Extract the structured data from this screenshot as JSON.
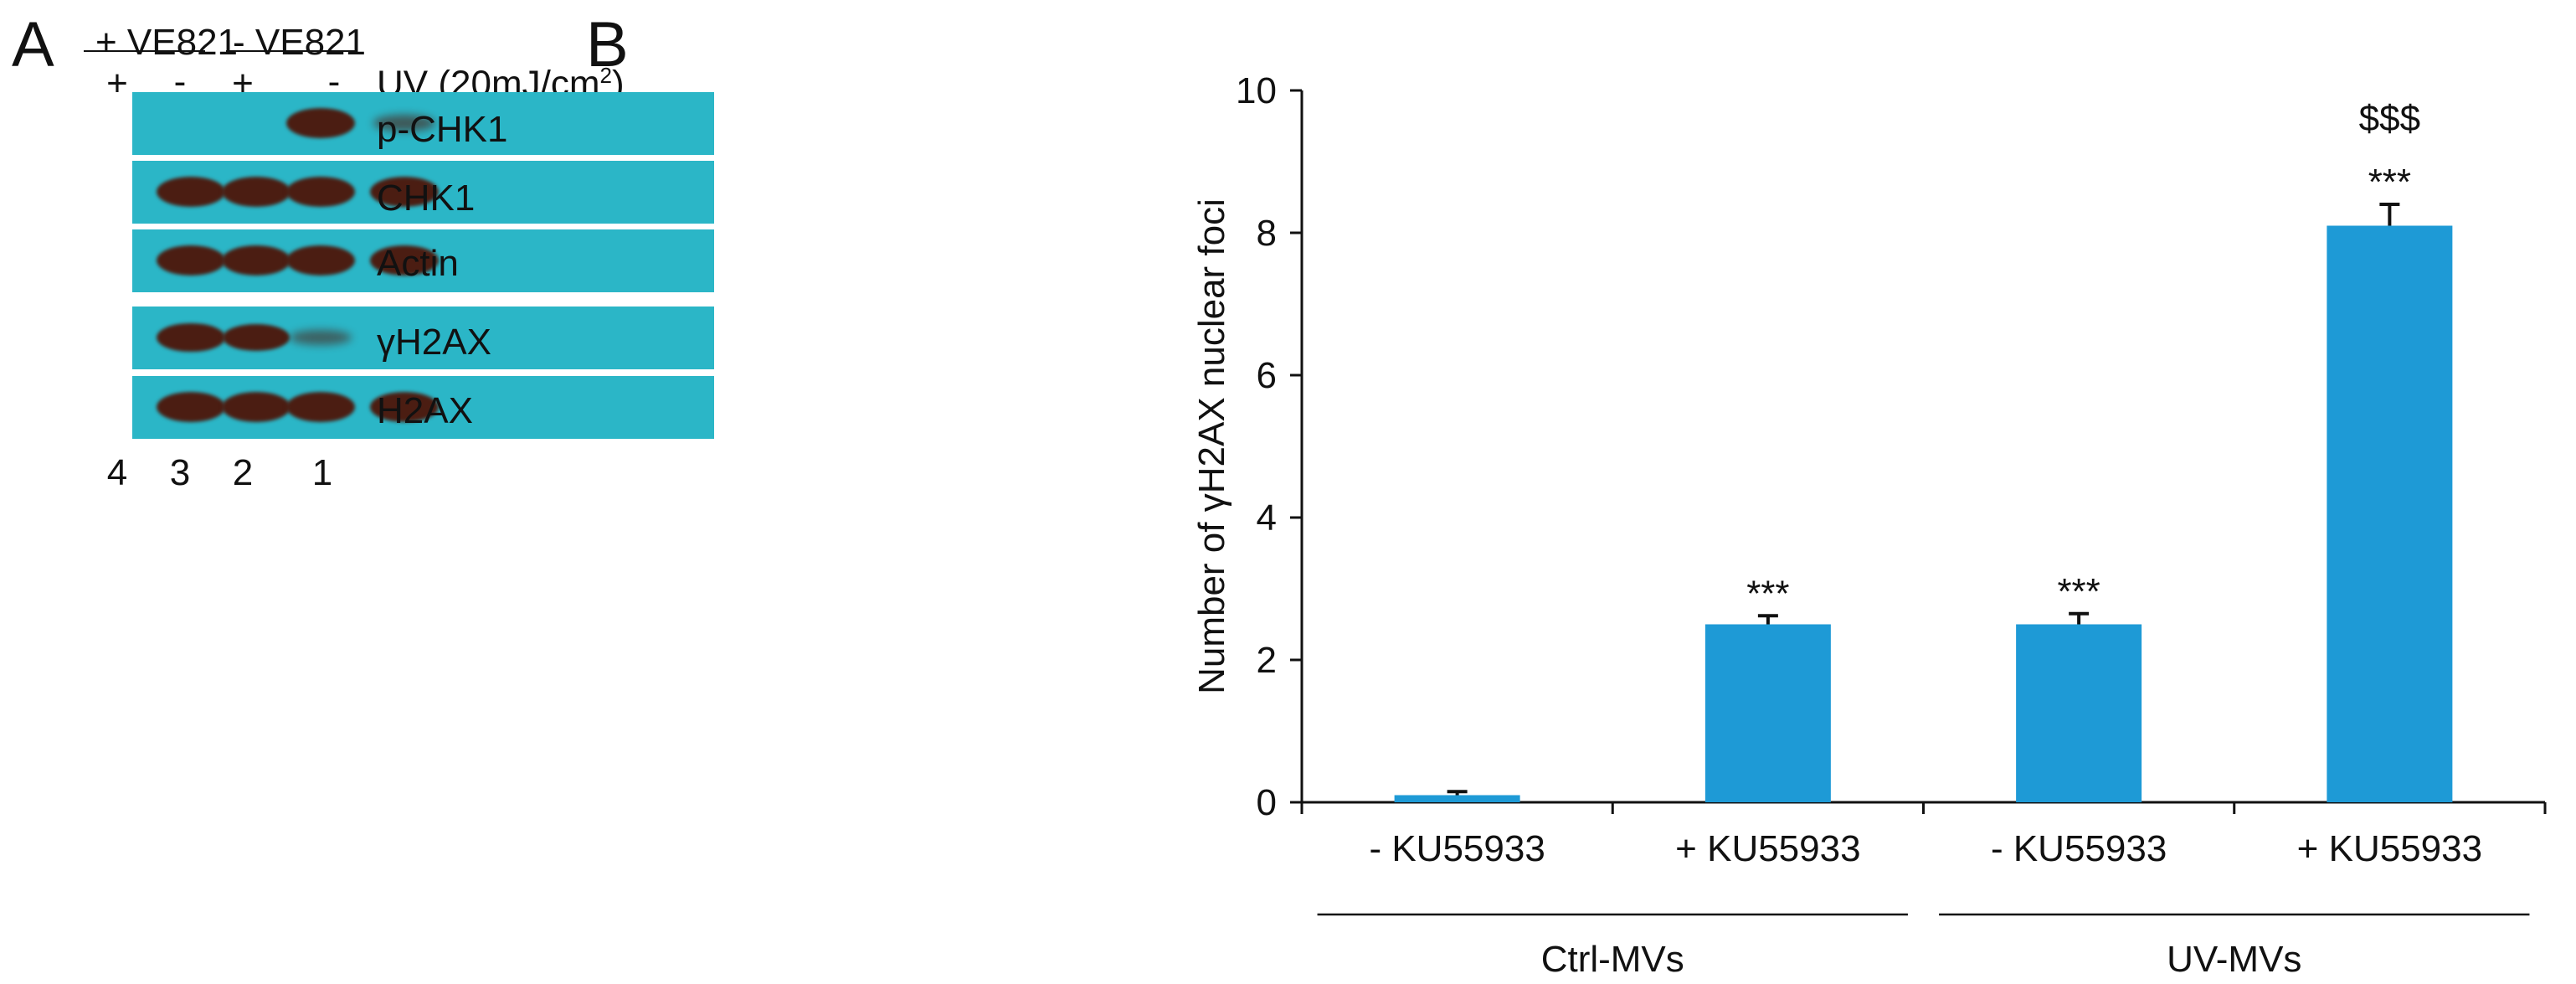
{
  "panel_a": {
    "letter": "A",
    "treatment_groups": [
      "+ VE821",
      "- VE821"
    ],
    "uv_signs": [
      "+",
      "-",
      "+",
      "-"
    ],
    "uv_label": "UV (20mJ/cm",
    "uv_label_sup": "2",
    "uv_label_close": ")",
    "blots": [
      {
        "label": "p-CHK1",
        "band_intensity": [
          0,
          0,
          1.0,
          0.35
        ]
      },
      {
        "label": "CHK1",
        "band_intensity": [
          1.0,
          1.0,
          1.0,
          1.0
        ]
      },
      {
        "label": "Actin",
        "band_intensity": [
          1.0,
          1.0,
          1.0,
          1.0
        ]
      },
      {
        "label": "γH2AX",
        "band_intensity": [
          0.95,
          0.85,
          0.3,
          0
        ]
      },
      {
        "label": "H2AX",
        "band_intensity": [
          1.0,
          1.0,
          1.0,
          1.0
        ]
      }
    ],
    "lane_numbers": [
      "4",
      "3",
      "2",
      "1"
    ],
    "colors": {
      "membrane": "#2bb6c7",
      "band": "#4b1d12"
    }
  },
  "panel_b": {
    "letter": "B"
  },
  "chart_data": {
    "type": "bar",
    "categories": [
      "- KU55933",
      "+ KU55933",
      "- KU55933",
      "+ KU55933"
    ],
    "groups": [
      {
        "label": "Ctrl-MVs",
        "categories": [
          0,
          1
        ]
      },
      {
        "label": "UV-MVs",
        "categories": [
          2,
          3
        ]
      }
    ],
    "values": [
      0.1,
      2.5,
      2.5,
      8.1
    ],
    "errors": [
      0.05,
      0.12,
      0.15,
      0.3
    ],
    "annotations": [
      {
        "category": 1,
        "lines": [
          "***"
        ]
      },
      {
        "category": 2,
        "lines": [
          "***"
        ]
      },
      {
        "category": 3,
        "lines": [
          "$$$",
          "***"
        ]
      }
    ],
    "ylabel": "Number of γH2AX nuclear foci",
    "ylim": [
      0,
      10
    ],
    "yticks": [
      0,
      2,
      4,
      6,
      8,
      10
    ],
    "grid": false,
    "bar_color": "#1e9ad6"
  }
}
